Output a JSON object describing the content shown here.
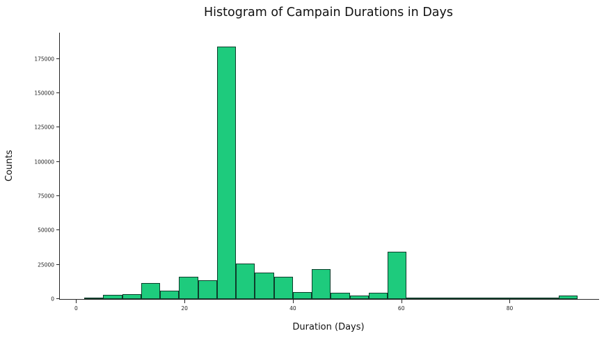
{
  "chart_data": {
    "type": "bar",
    "subtype": "histogram",
    "title": "Histogram of Campain Durations in Days",
    "xlabel": "Duration (Days)",
    "ylabel": "Counts",
    "xlim": [
      -3,
      96.5
    ],
    "ylim": [
      0,
      194000
    ],
    "grid": false,
    "legend": "none",
    "bar_fill": "#1ecb7d",
    "bar_edge": "#0d3d2b",
    "bin_edges": [
      1.5,
      5,
      8.5,
      12,
      15.5,
      19,
      22.5,
      26,
      29.5,
      33,
      36.5,
      40,
      43.5,
      47,
      50.5,
      54,
      57.5,
      61,
      64.5,
      68,
      71.5,
      75,
      78.5,
      82,
      85.5,
      89,
      92.5
    ],
    "counts": [
      800,
      3300,
      3800,
      11500,
      6000,
      16000,
      13500,
      184000,
      26000,
      19500,
      16000,
      5000,
      22000,
      4500,
      2500,
      4500,
      34500,
      400,
      200,
      150,
      100,
      100,
      400,
      150,
      100,
      2500
    ],
    "xticks": [
      0,
      20,
      40,
      60,
      80
    ],
    "xtick_labels": [
      "0",
      "20",
      "40",
      "60",
      "80"
    ],
    "yticks": [
      0,
      25000,
      50000,
      75000,
      100000,
      125000,
      150000,
      175000
    ],
    "ytick_labels": [
      "0",
      "25000",
      "50000",
      "75000",
      "100000",
      "125000",
      "150000",
      "175000"
    ]
  }
}
